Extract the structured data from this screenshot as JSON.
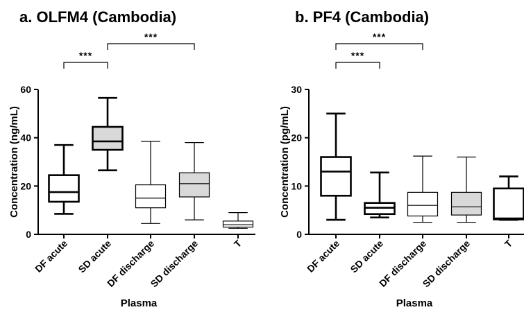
{
  "chart_data": [
    {
      "type": "box",
      "title": "a. OLFM4 (Cambodia)",
      "xlabel": "Plasma",
      "ylabel": "Concentration (ng/mL)",
      "ylim": [
        0,
        60
      ],
      "yticks": [
        "0",
        "20",
        "40",
        "60"
      ],
      "categories": [
        "DF acute",
        "SD acute",
        "DF discharge",
        "SD discharge",
        "T"
      ],
      "boxes": [
        {
          "min": 8.5,
          "q1": 13.5,
          "median": 17.5,
          "q3": 24.5,
          "max": 37,
          "fill": "#ffffff",
          "stroke": "#000000",
          "bold": true
        },
        {
          "min": 26.5,
          "q1": 35,
          "median": 38.5,
          "q3": 44.5,
          "max": 56.5,
          "fill": "#d9d9d9",
          "stroke": "#000000",
          "bold": true
        },
        {
          "min": 4.5,
          "q1": 11,
          "median": 15,
          "q3": 20.5,
          "max": 38.5,
          "fill": "#ffffff",
          "stroke": "#000000",
          "bold": false
        },
        {
          "min": 6,
          "q1": 15.5,
          "median": 21,
          "q3": 25.5,
          "max": 38,
          "fill": "#d9d9d9",
          "stroke": "#000000",
          "bold": false
        },
        {
          "min": 2.5,
          "q1": 3,
          "median": 4,
          "q3": 5.5,
          "max": 9,
          "fill": "#ffffff",
          "stroke": "#000000",
          "bold": false
        }
      ],
      "significance": [
        {
          "from": 0,
          "to": 1,
          "label": "***",
          "level": 0
        },
        {
          "from": 1,
          "to": 3,
          "label": "***",
          "level": 1
        }
      ]
    },
    {
      "type": "box",
      "title": "b. PF4 (Cambodia)",
      "xlabel": "Plasma",
      "ylabel": "Concentration (pg/mL)",
      "ylim": [
        0,
        30
      ],
      "yticks": [
        "0",
        "10",
        "20",
        "30"
      ],
      "categories": [
        "DF acute",
        "SD acute",
        "DF discharge",
        "SD discharge",
        "T"
      ],
      "boxes": [
        {
          "min": 3,
          "q1": 8,
          "median": 13,
          "q3": 16,
          "max": 25,
          "fill": "#ffffff",
          "stroke": "#000000",
          "bold": true
        },
        {
          "min": 3.5,
          "q1": 4.2,
          "median": 5.5,
          "q3": 6.5,
          "max": 12.8,
          "fill": "#ffffff",
          "stroke": "#000000",
          "bold": true
        },
        {
          "min": 2.5,
          "q1": 3.8,
          "median": 6,
          "q3": 8.7,
          "max": 16.2,
          "fill": "#ffffff",
          "stroke": "#000000",
          "bold": false
        },
        {
          "min": 2.5,
          "q1": 4,
          "median": 5.7,
          "q3": 8.7,
          "max": 16,
          "fill": "#d9d9d9",
          "stroke": "#000000",
          "bold": false
        },
        {
          "min": 3,
          "q1": 3.1,
          "median": 3.3,
          "q3": 9.5,
          "max": 12,
          "fill": "#ffffff",
          "stroke": "#000000",
          "bold": true
        }
      ],
      "significance": [
        {
          "from": 0,
          "to": 1,
          "label": "***",
          "level": 0
        },
        {
          "from": 0,
          "to": 2,
          "label": "***",
          "level": 1
        }
      ]
    }
  ]
}
